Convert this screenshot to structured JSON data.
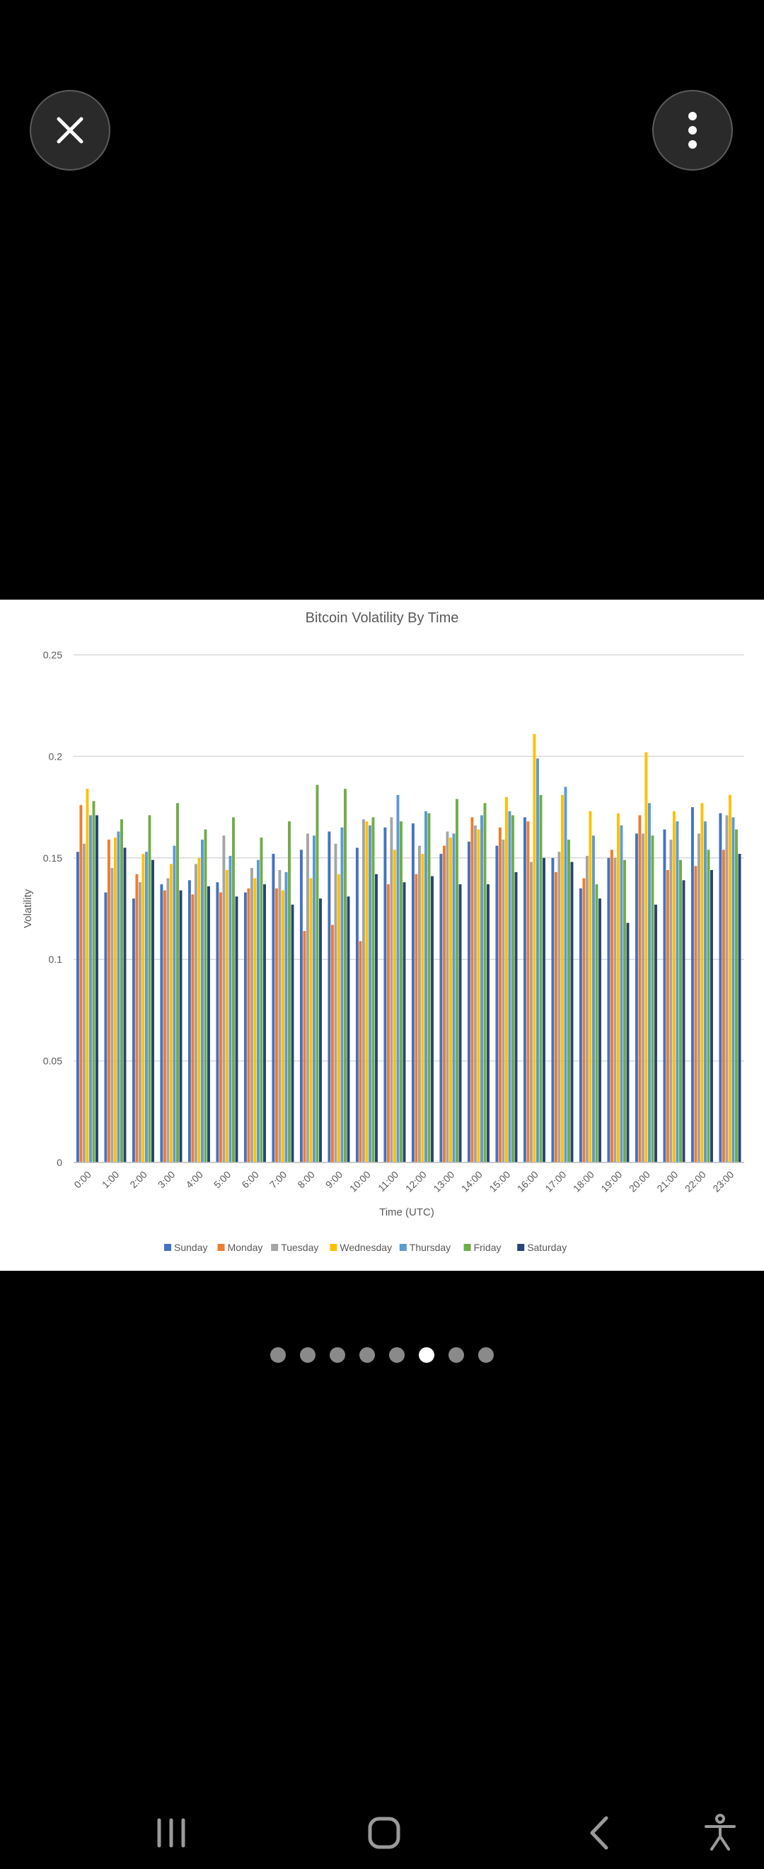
{
  "viewer": {
    "close_icon": "close-icon",
    "more_icon": "more-vertical-icon"
  },
  "chart_data": {
    "type": "bar",
    "title": "Bitcoin Volatility By Time",
    "xlabel": "Time (UTC)",
    "ylabel": "Volatility",
    "ylim": [
      0,
      0.25
    ],
    "yticks": [
      "0",
      "0.05",
      "0.1",
      "0.15",
      "0.2",
      "0.25"
    ],
    "grid": true,
    "legend_position": "bottom",
    "categories": [
      "0:00",
      "1:00",
      "2:00",
      "3:00",
      "4:00",
      "5:00",
      "6:00",
      "7:00",
      "8:00",
      "9:00",
      "10:00",
      "11:00",
      "12:00",
      "13:00",
      "14:00",
      "15:00",
      "16:00",
      "17:00",
      "18:00",
      "19:00",
      "20:00",
      "21:00",
      "22:00",
      "23:00"
    ],
    "series": [
      {
        "name": "Sunday",
        "color": "#4472C4",
        "values": [
          0.153,
          0.133,
          0.13,
          0.137,
          0.139,
          0.138,
          0.133,
          0.152,
          0.154,
          0.163,
          0.155,
          0.165,
          0.167,
          0.152,
          0.158,
          0.156,
          0.17,
          0.15,
          0.135,
          0.15,
          0.162,
          0.164,
          0.175,
          0.172
        ]
      },
      {
        "name": "Monday",
        "color": "#ED7D31",
        "values": [
          0.176,
          0.159,
          0.142,
          0.134,
          0.132,
          0.133,
          0.135,
          0.135,
          0.114,
          0.117,
          0.109,
          0.137,
          0.142,
          0.156,
          0.17,
          0.165,
          0.168,
          0.143,
          0.14,
          0.154,
          0.171,
          0.144,
          0.146,
          0.154
        ]
      },
      {
        "name": "Tuesday",
        "color": "#A5A5A5",
        "values": [
          0.157,
          0.145,
          0.138,
          0.14,
          0.147,
          0.161,
          0.145,
          0.144,
          0.162,
          0.157,
          0.169,
          0.17,
          0.156,
          0.163,
          0.166,
          0.159,
          0.148,
          0.153,
          0.151,
          0.15,
          0.162,
          0.159,
          0.162,
          0.171
        ]
      },
      {
        "name": "Wednesday",
        "color": "#FFC000",
        "values": [
          0.184,
          0.16,
          0.152,
          0.147,
          0.15,
          0.144,
          0.14,
          0.134,
          0.14,
          0.142,
          0.168,
          0.154,
          0.152,
          0.16,
          0.164,
          0.18,
          0.211,
          0.181,
          0.173,
          0.172,
          0.202,
          0.173,
          0.177,
          0.181
        ]
      },
      {
        "name": "Thursday",
        "color": "#5B9BD5",
        "values": [
          0.171,
          0.163,
          0.153,
          0.156,
          0.159,
          0.151,
          0.149,
          0.143,
          0.161,
          0.165,
          0.166,
          0.181,
          0.173,
          0.162,
          0.171,
          0.173,
          0.199,
          0.185,
          0.161,
          0.166,
          0.177,
          0.168,
          0.168,
          0.17
        ]
      },
      {
        "name": "Friday",
        "color": "#70AD47",
        "values": [
          0.178,
          0.169,
          0.171,
          0.177,
          0.164,
          0.17,
          0.16,
          0.168,
          0.186,
          0.184,
          0.17,
          0.168,
          0.172,
          0.179,
          0.177,
          0.171,
          0.181,
          0.159,
          0.137,
          0.149,
          0.161,
          0.149,
          0.154,
          0.164
        ]
      },
      {
        "name": "Saturday",
        "color": "#264478",
        "values": [
          0.171,
          0.155,
          0.149,
          0.134,
          0.136,
          0.131,
          0.137,
          0.127,
          0.13,
          0.131,
          0.142,
          0.138,
          0.141,
          0.137,
          0.137,
          0.143,
          0.15,
          0.148,
          0.13,
          0.118,
          0.127,
          0.139,
          0.144,
          0.152
        ]
      }
    ]
  },
  "pager": {
    "page_count": 8,
    "current_page": 6
  },
  "navbar": {
    "recents_icon": "recent-apps-icon",
    "home_icon": "home-icon",
    "back_icon": "back-icon",
    "accessibility_icon": "accessibility-icon"
  }
}
